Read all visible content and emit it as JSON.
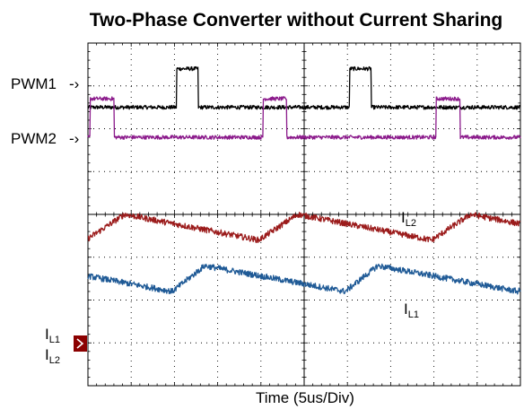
{
  "chart_data": {
    "type": "line",
    "title": "Two-Phase Converter without Current Sharing",
    "xlabel": "Time  (5us/Div)",
    "time_per_div": "5us/Div",
    "x_divisions": 10,
    "y_divisions": 8,
    "grid": true,
    "channel_labels": {
      "pwm1": "PWM1",
      "pwm2": "PWM2",
      "il1_main": "I",
      "il1_sub": "L1",
      "il2_main": "I",
      "il2_sub": "L2"
    },
    "series": [
      {
        "id": "pwm1",
        "color": "#000000",
        "kind": "pulse",
        "period_div": 4.0,
        "first_rise_div": 2.05,
        "width_div": 0.5,
        "low_div": 6.5,
        "high_div": 7.4
      },
      {
        "id": "pwm2",
        "color": "#8B1A8B",
        "kind": "pulse",
        "period_div": 4.0,
        "first_rise_div": 0.05,
        "width_div": 0.55,
        "low_div": 5.8,
        "high_div": 6.7
      },
      {
        "id": "il2",
        "color": "#9B1B1B",
        "kind": "sawtooth",
        "period_div": 4.0,
        "first_valley_div": -0.05,
        "rise_div": 0.9,
        "valley_div": 3.4,
        "peak_div": 4.0
      },
      {
        "id": "il1",
        "color": "#1F5A96",
        "kind": "sawtooth",
        "period_div": 4.0,
        "first_valley_div": 1.95,
        "rise_div": 0.75,
        "valley_div": 2.2,
        "peak_div": 2.8
      }
    ],
    "ground_marker": {
      "color": "#8B0000",
      "level_div": 1.4
    }
  }
}
